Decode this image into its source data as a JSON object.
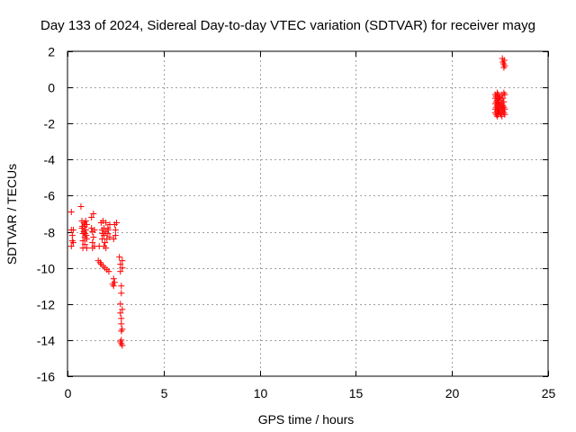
{
  "chart_data": {
    "type": "scatter",
    "title": "Day 133 of 2024, Sidereal Day-to-day VTEC variation (SDTVAR) for receiver mayg",
    "xlabel": "GPS time / hours",
    "ylabel": "SDTVAR / TECUs",
    "xlim": [
      0,
      25
    ],
    "ylim": [
      -16,
      2
    ],
    "xticks": [
      0,
      5,
      10,
      15,
      20,
      25
    ],
    "yticks": [
      2,
      0,
      -2,
      -4,
      -6,
      -8,
      -10,
      -12,
      -14,
      -16
    ],
    "xtick_labels": [
      "0",
      "5",
      "10",
      "15",
      "20",
      "25"
    ],
    "ytick_labels": [
      "2",
      "0",
      "-2",
      "-4",
      "-6",
      "-8",
      "-10",
      "-12",
      "-14",
      "-16"
    ],
    "grid": true,
    "marker": "+",
    "color": "#ff0000",
    "series": [
      {
        "name": "SDTVAR",
        "points": [
          [
            0.2,
            -6.9
          ],
          [
            0.2,
            -7.9
          ],
          [
            0.25,
            -8.2
          ],
          [
            0.25,
            -8.5
          ],
          [
            0.2,
            -8.8
          ],
          [
            0.3,
            -7.9
          ],
          [
            0.3,
            -8.6
          ],
          [
            0.7,
            -6.6
          ],
          [
            0.75,
            -7.4
          ],
          [
            0.75,
            -7.8
          ],
          [
            0.8,
            -8.1
          ],
          [
            0.8,
            -8.5
          ],
          [
            0.8,
            -8.9
          ],
          [
            0.85,
            -7.5
          ],
          [
            0.85,
            -8.0
          ],
          [
            0.9,
            -7.6
          ],
          [
            0.9,
            -8.3
          ],
          [
            0.9,
            -8.7
          ],
          [
            0.95,
            -7.4
          ],
          [
            0.95,
            -7.9
          ],
          [
            1.0,
            -7.6
          ],
          [
            1.0,
            -8.4
          ],
          [
            1.0,
            -8.9
          ],
          [
            0.88,
            -7.7
          ],
          [
            0.92,
            -8.1
          ],
          [
            0.78,
            -7.7
          ],
          [
            0.98,
            -8.2
          ],
          [
            1.25,
            -7.2
          ],
          [
            1.25,
            -7.8
          ],
          [
            1.3,
            -8.0
          ],
          [
            1.3,
            -8.6
          ],
          [
            1.3,
            -8.9
          ],
          [
            1.35,
            -7.0
          ],
          [
            1.35,
            -8.3
          ],
          [
            1.4,
            -7.9
          ],
          [
            1.4,
            -8.8
          ],
          [
            1.6,
            -9.6
          ],
          [
            1.65,
            -8.8
          ],
          [
            1.7,
            -9.7
          ],
          [
            1.75,
            -9.8
          ],
          [
            1.75,
            -7.5
          ],
          [
            1.8,
            -7.9
          ],
          [
            1.8,
            -8.4
          ],
          [
            1.85,
            -9.9
          ],
          [
            1.85,
            -7.4
          ],
          [
            1.9,
            -7.8
          ],
          [
            1.9,
            -8.2
          ],
          [
            1.95,
            -8.6
          ],
          [
            1.95,
            -10.0
          ],
          [
            2.0,
            -7.5
          ],
          [
            2.0,
            -8.0
          ],
          [
            2.05,
            -8.4
          ],
          [
            2.05,
            -10.1
          ],
          [
            2.1,
            -7.8
          ],
          [
            2.1,
            -8.1
          ],
          [
            2.15,
            -10.2
          ],
          [
            2.2,
            -7.6
          ],
          [
            2.2,
            -8.3
          ],
          [
            1.9,
            -8.8
          ],
          [
            2.0,
            -8.9
          ],
          [
            1.82,
            -8.1
          ],
          [
            2.12,
            -7.9
          ],
          [
            2.35,
            -10.9
          ],
          [
            2.4,
            -10.6
          ],
          [
            2.4,
            -11.0
          ],
          [
            2.45,
            -10.8
          ],
          [
            2.45,
            -7.6
          ],
          [
            2.5,
            -7.9
          ],
          [
            2.5,
            -8.2
          ],
          [
            2.4,
            -8.4
          ],
          [
            2.55,
            -7.5
          ],
          [
            2.7,
            -9.4
          ],
          [
            2.75,
            -9.8
          ],
          [
            2.75,
            -10.2
          ],
          [
            2.8,
            -11.0
          ],
          [
            2.8,
            -11.4
          ],
          [
            2.85,
            -9.6
          ],
          [
            2.85,
            -10.0
          ],
          [
            2.75,
            -12.0
          ],
          [
            2.75,
            -12.5
          ],
          [
            2.8,
            -12.8
          ],
          [
            2.8,
            -13.1
          ],
          [
            2.8,
            -13.5
          ],
          [
            2.85,
            -12.3
          ],
          [
            2.85,
            -13.4
          ],
          [
            2.75,
            -14.1
          ],
          [
            2.8,
            -14.2
          ],
          [
            2.85,
            -14.3
          ],
          [
            2.8,
            -14.0
          ],
          [
            22.25,
            -0.4
          ],
          [
            22.25,
            -0.6
          ],
          [
            22.25,
            -0.9
          ],
          [
            22.25,
            -1.2
          ],
          [
            22.25,
            -1.4
          ],
          [
            22.3,
            -0.5
          ],
          [
            22.3,
            -0.8
          ],
          [
            22.3,
            -1.1
          ],
          [
            22.3,
            -1.5
          ],
          [
            22.35,
            -0.3
          ],
          [
            22.35,
            -0.7
          ],
          [
            22.35,
            -1.0
          ],
          [
            22.35,
            -1.3
          ],
          [
            22.35,
            -1.6
          ],
          [
            22.4,
            -0.4
          ],
          [
            22.4,
            -0.8
          ],
          [
            22.4,
            -1.2
          ],
          [
            22.4,
            -1.5
          ],
          [
            22.45,
            -0.6
          ],
          [
            22.45,
            -0.9
          ],
          [
            22.45,
            -1.3
          ],
          [
            22.5,
            -0.5
          ],
          [
            22.5,
            -1.0
          ],
          [
            22.5,
            -1.4
          ],
          [
            22.55,
            -0.7
          ],
          [
            22.55,
            -1.1
          ],
          [
            22.55,
            -1.5
          ],
          [
            22.6,
            -0.4
          ],
          [
            22.6,
            -0.9
          ],
          [
            22.6,
            -1.2
          ],
          [
            22.6,
            -1.6
          ],
          [
            22.65,
            -0.6
          ],
          [
            22.65,
            -1.0
          ],
          [
            22.65,
            -1.3
          ],
          [
            22.7,
            -0.3
          ],
          [
            22.7,
            -0.8
          ],
          [
            22.7,
            -1.1
          ],
          [
            22.7,
            -1.4
          ],
          [
            22.75,
            -0.4
          ],
          [
            22.75,
            -1.2
          ],
          [
            22.75,
            -1.5
          ],
          [
            22.62,
            1.6
          ],
          [
            22.65,
            1.4
          ],
          [
            22.68,
            1.3
          ],
          [
            22.7,
            1.1
          ],
          [
            22.72,
            1.5
          ],
          [
            22.75,
            1.2
          ]
        ]
      }
    ]
  }
}
